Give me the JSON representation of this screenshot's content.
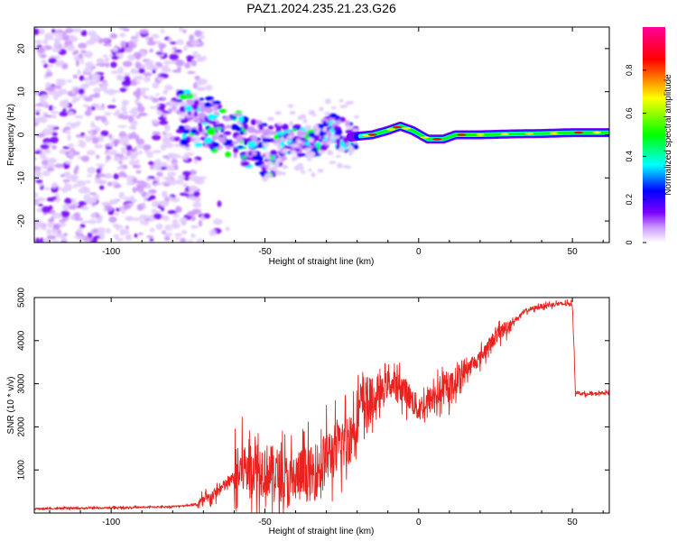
{
  "title": "PAZ1.2024.235.21.23.G26",
  "chart_data": [
    {
      "type": "heatmap",
      "xlabel": "Height of straight line (km)",
      "ylabel": "Frequency (Hz)",
      "xlim": [
        -125,
        62
      ],
      "ylim": [
        -25,
        25
      ],
      "xticks": [
        -100,
        -50,
        0,
        50
      ],
      "yticks": [
        -20,
        -10,
        0,
        10,
        20
      ],
      "colorbar": {
        "label": "Normalized spectral amplitude",
        "ticks": [
          0,
          0.2,
          0.4,
          0.6,
          0.8
        ],
        "range": [
          0,
          1
        ],
        "colormap": [
          "#ffffff",
          "#cc99ff",
          "#7b00ff",
          "#0000ff",
          "#00ffff",
          "#00ff00",
          "#ffff00",
          "#ff0000",
          "#ff0099"
        ]
      },
      "ridge": {
        "x": [
          -75,
          -65,
          -55,
          -48,
          -42,
          -35,
          -28,
          -22,
          -15,
          -10,
          -6,
          -2,
          3,
          8,
          12,
          20,
          30,
          40,
          50,
          62
        ],
        "y": [
          4,
          2,
          -2,
          -4,
          -1,
          -2,
          1,
          -0.5,
          0,
          1,
          2,
          1,
          -1,
          -1,
          0,
          0,
          0.2,
          0.3,
          0.5,
          0.5
        ]
      }
    },
    {
      "type": "line",
      "xlabel": "Height of straight line (km)",
      "ylabel": "SNR (10 * v/v)",
      "xlim": [
        -125,
        62
      ],
      "ylim": [
        0,
        5000
      ],
      "xticks": [
        -100,
        -50,
        0,
        50
      ],
      "yticks": [
        1000,
        2000,
        3000,
        4000,
        5000
      ],
      "series": [
        {
          "color": "#e8231f",
          "x": [
            -125,
            -100,
            -80,
            -72,
            -68,
            -62,
            -56,
            -50,
            -46,
            -42,
            -38,
            -34,
            -30,
            -26,
            -22,
            -20,
            -18,
            -15,
            -10,
            -5,
            0,
            5,
            10,
            15,
            20,
            25,
            30,
            35,
            40,
            45,
            50,
            51,
            55,
            62
          ],
          "y": [
            100,
            120,
            150,
            200,
            350,
            700,
            1100,
            1000,
            900,
            700,
            900,
            900,
            1300,
            1500,
            1800,
            2300,
            2600,
            2500,
            3000,
            2900,
            2400,
            2700,
            2900,
            3300,
            3600,
            4100,
            4400,
            4700,
            4800,
            4850,
            4850,
            2800,
            2750,
            2800
          ]
        }
      ]
    }
  ]
}
